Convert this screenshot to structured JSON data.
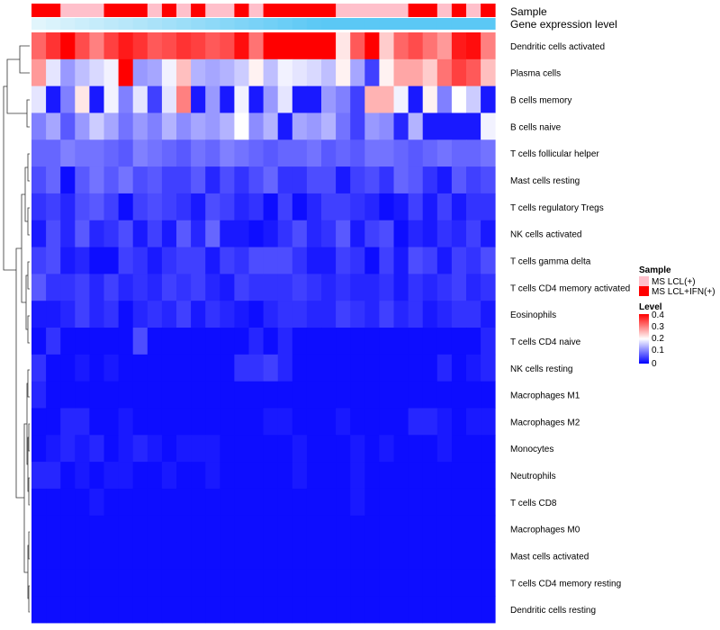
{
  "chart_data": {
    "type": "heatmap",
    "annotations": {
      "sample_label": "Sample",
      "expression_label": "Gene expression level"
    },
    "columns_sample": [
      "MS LCL+IFN(+)",
      "MS LCL+IFN(+)",
      "MS LCL(+)",
      "MS LCL(+)",
      "MS LCL(+)",
      "MS LCL+IFN(+)",
      "MS LCL+IFN(+)",
      "MS LCL+IFN(+)",
      "MS LCL(+)",
      "MS LCL+IFN(+)",
      "MS LCL(+)",
      "MS LCL+IFN(+)",
      "MS LCL(+)",
      "MS LCL(+)",
      "MS LCL+IFN(+)",
      "MS LCL(+)",
      "MS LCL+IFN(+)",
      "MS LCL+IFN(+)",
      "MS LCL+IFN(+)",
      "MS LCL+IFN(+)",
      "MS LCL+IFN(+)",
      "MS LCL(+)",
      "MS LCL(+)",
      "MS LCL(+)",
      "MS LCL(+)",
      "MS LCL(+)",
      "MS LCL+IFN(+)",
      "MS LCL+IFN(+)",
      "MS LCL(+)",
      "MS LCL+IFN(+)",
      "MS LCL(+)",
      "MS LCL+IFN(+)"
    ],
    "rows": [
      "Dendritic cells activated",
      "Plasma cells",
      "B cells memory",
      "B cells naive",
      "T cells follicular helper",
      "Mast cells resting",
      "T cells regulatory  Tregs",
      "NK cells activated",
      "T cells gamma delta",
      "T cells CD4 memory activated",
      "Eosinophils",
      "T cells CD4 naive",
      "NK cells resting",
      "Macrophages M1",
      "Macrophages M2",
      "Monocytes",
      "Neutrophils",
      "T cells CD8",
      "Macrophages M0",
      "Mast cells activated",
      "T cells CD4 memory resting",
      "Dendritic cells resting"
    ],
    "values": [
      [
        0.32,
        0.36,
        0.4,
        0.34,
        0.3,
        0.35,
        0.38,
        0.36,
        0.33,
        0.34,
        0.36,
        0.35,
        0.33,
        0.34,
        0.39,
        0.31,
        0.4,
        0.4,
        0.4,
        0.4,
        0.4,
        0.22,
        0.33,
        0.4,
        0.24,
        0.32,
        0.34,
        0.31,
        0.28,
        0.38,
        0.39,
        0.3
      ],
      [
        0.28,
        0.18,
        0.12,
        0.15,
        0.17,
        0.19,
        0.4,
        0.12,
        0.13,
        0.19,
        0.25,
        0.14,
        0.13,
        0.14,
        0.16,
        0.21,
        0.15,
        0.19,
        0.18,
        0.17,
        0.15,
        0.21,
        0.13,
        0.05,
        0.21,
        0.27,
        0.27,
        0.24,
        0.31,
        0.35,
        0.33,
        0.25
      ],
      [
        0.18,
        0.02,
        0.1,
        0.22,
        0.02,
        0.19,
        0.1,
        0.18,
        0.05,
        0.18,
        0.3,
        0.02,
        0.12,
        0.02,
        0.19,
        0.02,
        0.12,
        0.18,
        0.02,
        0.02,
        0.12,
        0.1,
        0.05,
        0.26,
        0.26,
        0.19,
        0.02,
        0.21,
        0.1,
        0.2,
        0.16,
        0.02
      ],
      [
        0.1,
        0.13,
        0.07,
        0.12,
        0.16,
        0.13,
        0.09,
        0.12,
        0.1,
        0.14,
        0.11,
        0.13,
        0.12,
        0.14,
        0.2,
        0.11,
        0.14,
        0.02,
        0.13,
        0.12,
        0.14,
        0.09,
        0.05,
        0.12,
        0.11,
        0.03,
        0.14,
        0.02,
        0.02,
        0.02,
        0.02,
        0.19
      ],
      [
        0.08,
        0.08,
        0.1,
        0.09,
        0.09,
        0.08,
        0.07,
        0.1,
        0.09,
        0.08,
        0.07,
        0.09,
        0.08,
        0.1,
        0.09,
        0.08,
        0.07,
        0.08,
        0.08,
        0.09,
        0.07,
        0.08,
        0.07,
        0.09,
        0.09,
        0.08,
        0.07,
        0.08,
        0.09,
        0.08,
        0.08,
        0.09
      ],
      [
        0.06,
        0.08,
        0.01,
        0.07,
        0.09,
        0.07,
        0.09,
        0.06,
        0.07,
        0.05,
        0.05,
        0.07,
        0.03,
        0.06,
        0.04,
        0.06,
        0.08,
        0.04,
        0.04,
        0.06,
        0.06,
        0.02,
        0.05,
        0.06,
        0.04,
        0.08,
        0.07,
        0.04,
        0.02,
        0.07,
        0.05,
        0.06
      ],
      [
        0.04,
        0.05,
        0.03,
        0.06,
        0.07,
        0.05,
        0.01,
        0.05,
        0.06,
        0.05,
        0.04,
        0.02,
        0.06,
        0.05,
        0.03,
        0.04,
        0.01,
        0.05,
        0.01,
        0.03,
        0.05,
        0.05,
        0.04,
        0.03,
        0.01,
        0.02,
        0.05,
        0.02,
        0.05,
        0.02,
        0.04,
        0.04
      ],
      [
        0.02,
        0.06,
        0.03,
        0.07,
        0.03,
        0.04,
        0.06,
        0.02,
        0.05,
        0.02,
        0.07,
        0.03,
        0.08,
        0.02,
        0.02,
        0.01,
        0.02,
        0.04,
        0.06,
        0.03,
        0.04,
        0.07,
        0.02,
        0.05,
        0.06,
        0.01,
        0.03,
        0.02,
        0.04,
        0.03,
        0.05,
        0.02
      ],
      [
        0.05,
        0.06,
        0.02,
        0.03,
        0.01,
        0.01,
        0.05,
        0.04,
        0.02,
        0.04,
        0.05,
        0.05,
        0.02,
        0.05,
        0.04,
        0.06,
        0.06,
        0.06,
        0.04,
        0.02,
        0.02,
        0.05,
        0.04,
        0.01,
        0.05,
        0.02,
        0.06,
        0.05,
        0.02,
        0.05,
        0.04,
        0.06
      ],
      [
        0.07,
        0.04,
        0.04,
        0.05,
        0.03,
        0.05,
        0.03,
        0.04,
        0.03,
        0.05,
        0.04,
        0.05,
        0.03,
        0.02,
        0.05,
        0.04,
        0.04,
        0.04,
        0.05,
        0.04,
        0.03,
        0.04,
        0.03,
        0.03,
        0.04,
        0.02,
        0.04,
        0.03,
        0.04,
        0.05,
        0.03,
        0.04
      ],
      [
        0.02,
        0.02,
        0.03,
        0.05,
        0.03,
        0.04,
        0.01,
        0.03,
        0.04,
        0.03,
        0.05,
        0.02,
        0.04,
        0.03,
        0.02,
        0.01,
        0.03,
        0.04,
        0.04,
        0.03,
        0.03,
        0.05,
        0.04,
        0.03,
        0.05,
        0.03,
        0.04,
        0.02,
        0.03,
        0.04,
        0.04,
        0.02
      ],
      [
        0.01,
        0.04,
        0.01,
        0.01,
        0.01,
        0.01,
        0.01,
        0.06,
        0.01,
        0.01,
        0.01,
        0.01,
        0.01,
        0.01,
        0.01,
        0.03,
        0.01,
        0.03,
        0.01,
        0.01,
        0.01,
        0.01,
        0.01,
        0.01,
        0.01,
        0.01,
        0.01,
        0.01,
        0.01,
        0.01,
        0.01,
        0.03
      ],
      [
        0.04,
        0.01,
        0.01,
        0.02,
        0.01,
        0.02,
        0.01,
        0.01,
        0.01,
        0.01,
        0.01,
        0.01,
        0.01,
        0.01,
        0.04,
        0.04,
        0.05,
        0.03,
        0.01,
        0.01,
        0.01,
        0.01,
        0.01,
        0.01,
        0.01,
        0.01,
        0.01,
        0.01,
        0.03,
        0.01,
        0.02,
        0.03
      ],
      [
        0.03,
        0.01,
        0.01,
        0.01,
        0.01,
        0.01,
        0.01,
        0.01,
        0.01,
        0.01,
        0.01,
        0.01,
        0.01,
        0.01,
        0.01,
        0.01,
        0.01,
        0.01,
        0.01,
        0.01,
        0.01,
        0.01,
        0.01,
        0.01,
        0.01,
        0.01,
        0.01,
        0.01,
        0.01,
        0.01,
        0.01,
        0.01
      ],
      [
        0.01,
        0.01,
        0.03,
        0.03,
        0.01,
        0.01,
        0.02,
        0.01,
        0.01,
        0.01,
        0.01,
        0.01,
        0.01,
        0.01,
        0.01,
        0.01,
        0.02,
        0.02,
        0.01,
        0.01,
        0.01,
        0.02,
        0.01,
        0.01,
        0.01,
        0.01,
        0.03,
        0.03,
        0.02,
        0.01,
        0.02,
        0.02
      ],
      [
        0.01,
        0.02,
        0.03,
        0.02,
        0.03,
        0.01,
        0.02,
        0.03,
        0.02,
        0.01,
        0.02,
        0.02,
        0.02,
        0.01,
        0.01,
        0.01,
        0.01,
        0.01,
        0.02,
        0.01,
        0.01,
        0.01,
        0.02,
        0.01,
        0.02,
        0.01,
        0.01,
        0.01,
        0.02,
        0.01,
        0.01,
        0.01
      ],
      [
        0.03,
        0.03,
        0.01,
        0.02,
        0.01,
        0.02,
        0.02,
        0.01,
        0.01,
        0.02,
        0.01,
        0.01,
        0.02,
        0.01,
        0.01,
        0.01,
        0.01,
        0.01,
        0.02,
        0.01,
        0.01,
        0.01,
        0.02,
        0.01,
        0.01,
        0.01,
        0.01,
        0.01,
        0.01,
        0.01,
        0.01,
        0.01
      ],
      [
        0.01,
        0.01,
        0.01,
        0.01,
        0.02,
        0.01,
        0.01,
        0.01,
        0.01,
        0.01,
        0.01,
        0.01,
        0.01,
        0.01,
        0.01,
        0.01,
        0.01,
        0.01,
        0.01,
        0.01,
        0.01,
        0.01,
        0.02,
        0.01,
        0.01,
        0.01,
        0.01,
        0.01,
        0.01,
        0.01,
        0.01,
        0.01
      ],
      [
        0.01,
        0.01,
        0.01,
        0.01,
        0.01,
        0.01,
        0.01,
        0.01,
        0.01,
        0.01,
        0.01,
        0.01,
        0.01,
        0.01,
        0.01,
        0.01,
        0.01,
        0.01,
        0.01,
        0.01,
        0.01,
        0.01,
        0.01,
        0.01,
        0.01,
        0.01,
        0.01,
        0.01,
        0.01,
        0.01,
        0.01,
        0.01
      ],
      [
        0.01,
        0.01,
        0.01,
        0.01,
        0.01,
        0.01,
        0.01,
        0.01,
        0.01,
        0.01,
        0.01,
        0.01,
        0.01,
        0.01,
        0.01,
        0.01,
        0.01,
        0.01,
        0.01,
        0.01,
        0.01,
        0.01,
        0.01,
        0.01,
        0.01,
        0.01,
        0.01,
        0.01,
        0.01,
        0.01,
        0.01,
        0.01
      ],
      [
        0.01,
        0.01,
        0.01,
        0.01,
        0.01,
        0.01,
        0.01,
        0.01,
        0.01,
        0.01,
        0.01,
        0.01,
        0.01,
        0.01,
        0.01,
        0.01,
        0.01,
        0.01,
        0.01,
        0.01,
        0.01,
        0.01,
        0.01,
        0.01,
        0.01,
        0.01,
        0.01,
        0.01,
        0.01,
        0.01,
        0.01,
        0.01
      ],
      [
        0.01,
        0.01,
        0.01,
        0.01,
        0.01,
        0.01,
        0.01,
        0.01,
        0.01,
        0.01,
        0.01,
        0.01,
        0.01,
        0.01,
        0.01,
        0.01,
        0.01,
        0.01,
        0.01,
        0.01,
        0.01,
        0.01,
        0.01,
        0.01,
        0.01,
        0.01,
        0.01,
        0.01,
        0.01,
        0.01,
        0.01,
        0.01
      ]
    ],
    "legend": {
      "sample_title": "Sample",
      "sample_items": [
        {
          "label": "MS LCL(+)",
          "color": "#FFC0CB"
        },
        {
          "label": "MS LCL+IFN(+)",
          "color": "#FF0000"
        }
      ],
      "level_title": "Level",
      "level_ticks": [
        "0.4",
        "0.3",
        "0.2",
        "0.1",
        "0"
      ]
    },
    "colors": {
      "low": "#0000FF",
      "mid": "#FFFFFF",
      "high": "#FF0000",
      "expression_bar": "#5BC8F5"
    },
    "scale": {
      "min": 0,
      "mid": 0.2,
      "max": 0.4
    }
  }
}
